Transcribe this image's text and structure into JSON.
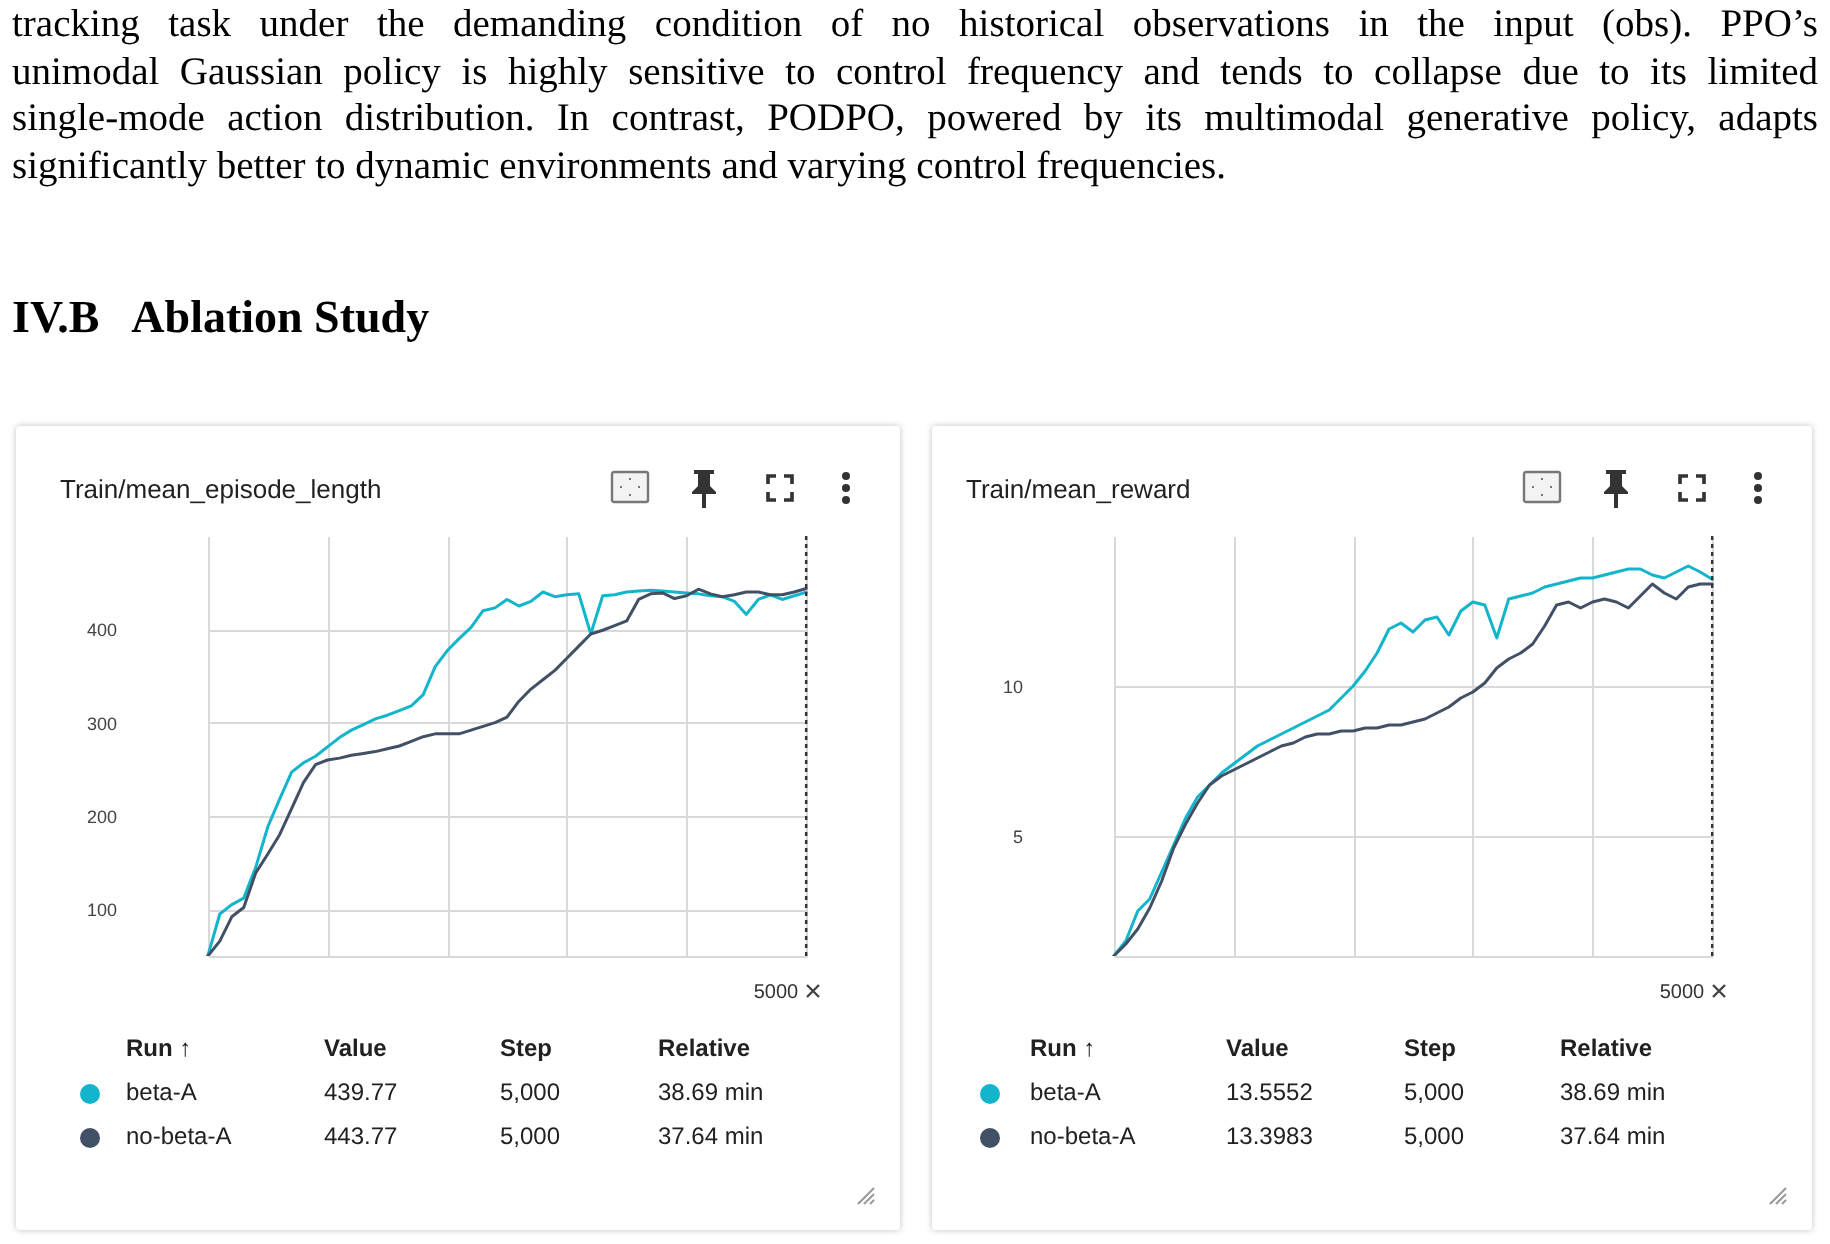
{
  "chart_data": [
    {
      "type": "line",
      "title": "Train/mean_episode_length",
      "annotations": [
        "tracking task under the demanding condition of no historical observations in the input (obs).  PPO’s",
        "unimodal Gaussian policy is highly sensitive to control frequency and tends to collapse due to its limited",
        "single-mode action distribution. In contrast, PODPO, powered by its multimodal generative policy, adapts",
        "significantly better to dynamic environments and varying control frequencies.",
        "IV.B   Ablation Study",
        "5000",
        "Run ↑",
        "Value",
        "Step",
        "Relative",
        "439.77",
        "5,000",
        "38.69 min",
        "443.77",
        "5,000",
        "37.64 min"
      ],
      "categories": [
        null,
        null,
        null,
        null,
        null,
        null,
        null,
        null,
        null,
        null,
        null,
        null,
        null,
        null,
        null,
        null,
        null,
        null,
        null,
        null,
        null,
        null,
        null,
        null,
        null,
        null,
        null,
        null,
        null,
        null,
        null,
        null,
        null,
        null,
        null,
        null,
        null,
        null,
        null,
        null,
        null,
        null,
        null,
        null,
        null,
        null,
        null,
        null,
        null,
        null,
        null
      ],
      "ylim": [
        50,
        500
      ],
      "yticks": [
        100,
        200,
        300,
        400
      ],
      "grid": true,
      "tick_labels": "y",
      "legend": "bottom",
      "series": [
        {
          "name": "beta-A",
          "color": "#12b5cb",
          "values": [
            50,
            95,
            105,
            112,
            145,
            188,
            218,
            247,
            257,
            264,
            274,
            284,
            292,
            298,
            304,
            308,
            313,
            318,
            330,
            360,
            377,
            390,
            402,
            420,
            423,
            432,
            425,
            430,
            440,
            435,
            437,
            438,
            395,
            436,
            437,
            440,
            441,
            442,
            441,
            440,
            439,
            438,
            436,
            435,
            430,
            416,
            432,
            437,
            432,
            436,
            439.77
          ]
        },
        {
          "name": "no-beta-A",
          "color": "#425066",
          "values": [
            50,
            66,
            92,
            102,
            139,
            159,
            180,
            208,
            236,
            255,
            260,
            262,
            265,
            267,
            269,
            272,
            275,
            280,
            285,
            288,
            288,
            288,
            292,
            296,
            300,
            306,
            323,
            336,
            346,
            356,
            369,
            382,
            395,
            399,
            404,
            409,
            432,
            438,
            439,
            433,
            436,
            443,
            438,
            435,
            437,
            440,
            440,
            437,
            437,
            440,
            443.77
          ]
        }
      ]
    },
    {
      "type": "line",
      "title": "Train/mean_reward",
      "annotations": [
        "5000",
        "Run ↑",
        "Value",
        "Step",
        "Relative",
        "13.5552",
        "5,000",
        "38.69 min",
        "13.3983",
        "5,000",
        "37.64 min"
      ],
      "categories": [
        null,
        null,
        null,
        null,
        null,
        null,
        null,
        null,
        null,
        null,
        null,
        null,
        null,
        null,
        null,
        null,
        null,
        null,
        null,
        null,
        null,
        null,
        null,
        null,
        null,
        null,
        null,
        null,
        null,
        null,
        null,
        null,
        null,
        null,
        null,
        null,
        null,
        null,
        null,
        null,
        null,
        null,
        null,
        null,
        null,
        null,
        null,
        null,
        null,
        null,
        null
      ],
      "ylim": [
        1,
        15
      ],
      "yticks": [
        5,
        10
      ],
      "grid": true,
      "tick_labels": "y",
      "legend": "bottom",
      "series": [
        {
          "name": "beta-A",
          "color": "#12b5cb",
          "values": [
            1.0,
            1.5,
            2.5,
            2.9,
            3.8,
            4.7,
            5.6,
            6.3,
            6.7,
            7.1,
            7.4,
            7.7,
            8.0,
            8.2,
            8.4,
            8.6,
            8.8,
            9.0,
            9.2,
            9.6,
            10.0,
            10.5,
            11.1,
            11.9,
            12.1,
            11.8,
            12.2,
            12.3,
            11.7,
            12.5,
            12.8,
            12.7,
            11.6,
            12.9,
            13.0,
            13.1,
            13.3,
            13.4,
            13.5,
            13.6,
            13.6,
            13.7,
            13.8,
            13.9,
            13.9,
            13.7,
            13.6,
            13.8,
            14.0,
            13.8,
            13.5552
          ]
        },
        {
          "name": "no-beta-A",
          "color": "#425066",
          "values": [
            1.0,
            1.4,
            1.9,
            2.6,
            3.5,
            4.6,
            5.4,
            6.1,
            6.7,
            7.0,
            7.2,
            7.4,
            7.6,
            7.8,
            8.0,
            8.1,
            8.3,
            8.4,
            8.4,
            8.5,
            8.5,
            8.6,
            8.6,
            8.7,
            8.7,
            8.8,
            8.9,
            9.1,
            9.3,
            9.6,
            9.8,
            10.1,
            10.6,
            10.9,
            11.1,
            11.4,
            12.0,
            12.7,
            12.8,
            12.6,
            12.8,
            12.9,
            12.8,
            12.6,
            13.0,
            13.4,
            13.1,
            12.9,
            13.3,
            13.4,
            13.3983
          ]
        }
      ]
    }
  ]
}
